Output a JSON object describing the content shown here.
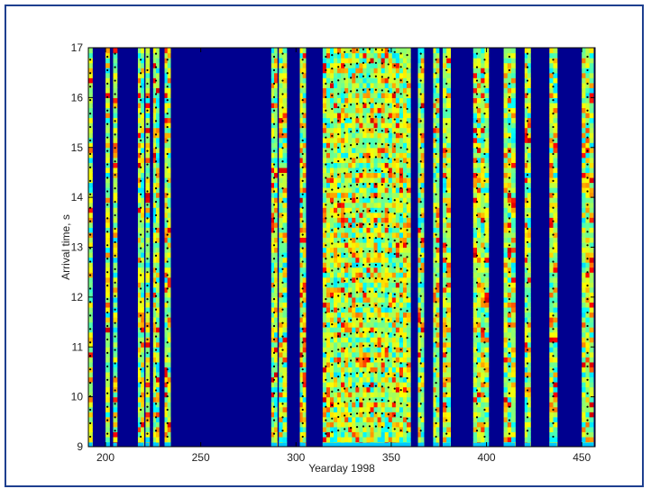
{
  "chart_data": {
    "type": "heatmap",
    "title": "",
    "xlabel": "Yearday 1998",
    "ylabel": "Arrival time, s",
    "xlim": [
      191,
      457
    ],
    "ylim": [
      9,
      17
    ],
    "x_ticks": [
      200,
      250,
      300,
      350,
      400,
      450
    ],
    "y_ticks": [
      9,
      10,
      11,
      12,
      13,
      14,
      15,
      16,
      17
    ],
    "colormap": "jet",
    "background_color": "#00008f",
    "data_columns": [
      [
        191,
        193
      ],
      [
        200,
        202
      ],
      [
        204,
        206
      ],
      [
        217,
        220
      ],
      [
        221,
        223
      ],
      [
        225,
        228
      ],
      [
        231,
        234
      ],
      [
        287,
        290
      ],
      [
        291,
        295
      ],
      [
        302,
        305
      ],
      [
        314,
        360
      ],
      [
        364,
        367
      ],
      [
        372,
        375
      ],
      [
        377,
        381
      ],
      [
        393,
        397
      ],
      [
        397,
        401
      ],
      [
        409,
        415
      ],
      [
        420,
        423
      ],
      [
        433,
        437
      ],
      [
        450,
        456
      ]
    ],
    "annotations": "black dots mark fitted arrival paths in data columns"
  },
  "page": {
    "border_color": "#1e3f8f"
  }
}
